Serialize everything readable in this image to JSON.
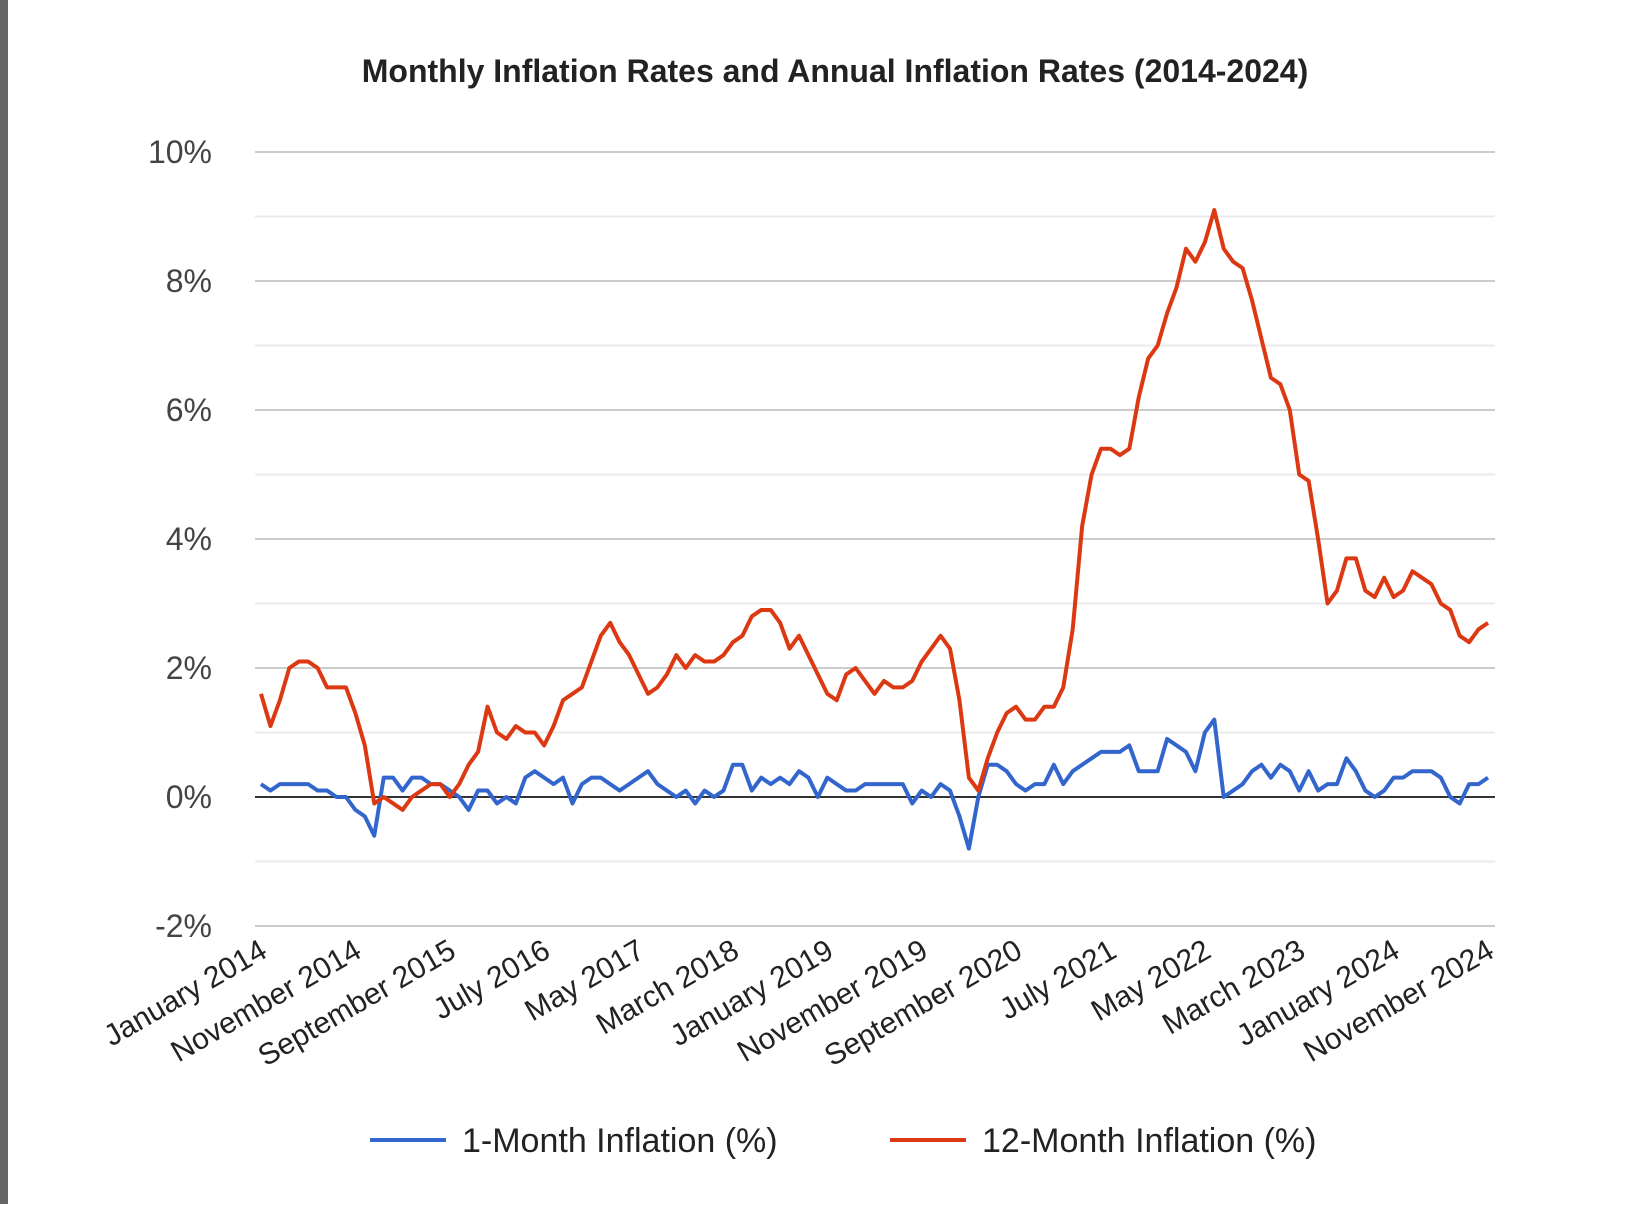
{
  "chart_data": {
    "type": "line",
    "title": "Monthly Inflation Rates and Annual Inflation Rates (2014-2024)",
    "categories": [
      "January 2014",
      null,
      null,
      null,
      null,
      null,
      null,
      null,
      null,
      null,
      "November 2014",
      null,
      null,
      null,
      null,
      null,
      null,
      null,
      null,
      null,
      "September 2015",
      null,
      null,
      null,
      null,
      null,
      null,
      null,
      null,
      null,
      "July 2016",
      null,
      null,
      null,
      null,
      null,
      null,
      null,
      null,
      null,
      "May 2017",
      null,
      null,
      null,
      null,
      null,
      null,
      null,
      null,
      null,
      "March 2018",
      null,
      null,
      null,
      null,
      null,
      null,
      null,
      null,
      null,
      "January 2019",
      null,
      null,
      null,
      null,
      null,
      null,
      null,
      null,
      null,
      "November 2019",
      null,
      null,
      null,
      null,
      null,
      null,
      null,
      null,
      null,
      "September 2020",
      null,
      null,
      null,
      null,
      null,
      null,
      null,
      null,
      null,
      "July 2021",
      null,
      null,
      null,
      null,
      null,
      null,
      null,
      null,
      null,
      "May 2022",
      null,
      null,
      null,
      null,
      null,
      null,
      null,
      null,
      null,
      "March 2023",
      null,
      null,
      null,
      null,
      null,
      null,
      null,
      null,
      null,
      "January 2024",
      null,
      null,
      null,
      null,
      null,
      null,
      null,
      null,
      null,
      "November 2024"
    ],
    "series": [
      {
        "name": "1-Month Inflation (%)",
        "color": "#3366cc",
        "values": [
          0.2,
          0.1,
          0.2,
          0.2,
          0.2,
          0.2,
          0.1,
          0.1,
          0.0,
          0.0,
          -0.2,
          -0.3,
          -0.6,
          0.3,
          0.3,
          0.1,
          0.3,
          0.3,
          0.2,
          0.2,
          0.1,
          0.0,
          -0.2,
          0.1,
          0.1,
          -0.1,
          0.0,
          -0.1,
          0.3,
          0.4,
          0.3,
          0.2,
          0.3,
          -0.1,
          0.2,
          0.3,
          0.3,
          0.2,
          0.1,
          0.2,
          0.3,
          0.4,
          0.2,
          0.1,
          0.0,
          0.1,
          -0.1,
          0.1,
          0.0,
          0.1,
          0.5,
          0.5,
          0.1,
          0.3,
          0.2,
          0.3,
          0.2,
          0.4,
          0.3,
          0.0,
          0.3,
          0.2,
          0.1,
          0.1,
          0.2,
          0.2,
          0.2,
          0.2,
          0.2,
          -0.1,
          0.1,
          0.0,
          0.2,
          0.1,
          -0.3,
          -0.8,
          0.0,
          0.5,
          0.5,
          0.4,
          0.2,
          0.1,
          0.2,
          0.2,
          0.5,
          0.2,
          0.4,
          0.5,
          0.6,
          0.7,
          0.7,
          0.7,
          0.8,
          0.4,
          0.4,
          0.4,
          0.9,
          0.8,
          0.7,
          0.4,
          1.0,
          1.2,
          0.0,
          0.1,
          0.2,
          0.4,
          0.5,
          0.3,
          0.5,
          0.4,
          0.1,
          0.4,
          0.1,
          0.2,
          0.2,
          0.6,
          0.4,
          0.1,
          0.0,
          0.1,
          0.3,
          0.3,
          0.4,
          0.4,
          0.4,
          0.3,
          0.0,
          -0.1,
          0.2,
          0.2,
          0.3
        ]
      },
      {
        "name": "12-Month Inflation (%)",
        "color": "#dc3912",
        "values": [
          1.6,
          1.1,
          1.5,
          2.0,
          2.1,
          2.1,
          2.0,
          1.7,
          1.7,
          1.7,
          1.3,
          0.8,
          -0.1,
          0.0,
          -0.1,
          -0.2,
          0.0,
          0.1,
          0.2,
          0.2,
          0.0,
          0.2,
          0.5,
          0.7,
          1.4,
          1.0,
          0.9,
          1.1,
          1.0,
          1.0,
          0.8,
          1.1,
          1.5,
          1.6,
          1.7,
          2.1,
          2.5,
          2.7,
          2.4,
          2.2,
          1.9,
          1.6,
          1.7,
          1.9,
          2.2,
          2.0,
          2.2,
          2.1,
          2.1,
          2.2,
          2.4,
          2.5,
          2.8,
          2.9,
          2.9,
          2.7,
          2.3,
          2.5,
          2.2,
          1.9,
          1.6,
          1.5,
          1.9,
          2.0,
          1.8,
          1.6,
          1.8,
          1.7,
          1.7,
          1.8,
          2.1,
          2.3,
          2.5,
          2.3,
          1.5,
          0.3,
          0.1,
          0.6,
          1.0,
          1.3,
          1.4,
          1.2,
          1.2,
          1.4,
          1.4,
          1.7,
          2.6,
          4.2,
          5.0,
          5.4,
          5.4,
          5.3,
          5.4,
          6.2,
          6.8,
          7.0,
          7.5,
          7.9,
          8.5,
          8.3,
          8.6,
          9.1,
          8.5,
          8.3,
          8.2,
          7.7,
          7.1,
          6.5,
          6.4,
          6.0,
          5.0,
          4.9,
          4.0,
          3.0,
          3.2,
          3.7,
          3.7,
          3.2,
          3.1,
          3.4,
          3.1,
          3.2,
          3.5,
          3.4,
          3.3,
          3.0,
          2.9,
          2.5,
          2.4,
          2.6,
          2.7
        ]
      }
    ],
    "ylim": [
      -2,
      10
    ],
    "yticks": [
      {
        "value": -2,
        "label": "-2%"
      },
      {
        "value": 0,
        "label": "0%"
      },
      {
        "value": 2,
        "label": "2%"
      },
      {
        "value": 4,
        "label": "4%"
      },
      {
        "value": 6,
        "label": "6%"
      },
      {
        "value": 8,
        "label": "8%"
      },
      {
        "value": 10,
        "label": "10%"
      }
    ],
    "minor_yticks": [
      -1,
      1,
      3,
      5,
      7,
      9
    ],
    "grid": true,
    "legend": "bottom"
  }
}
